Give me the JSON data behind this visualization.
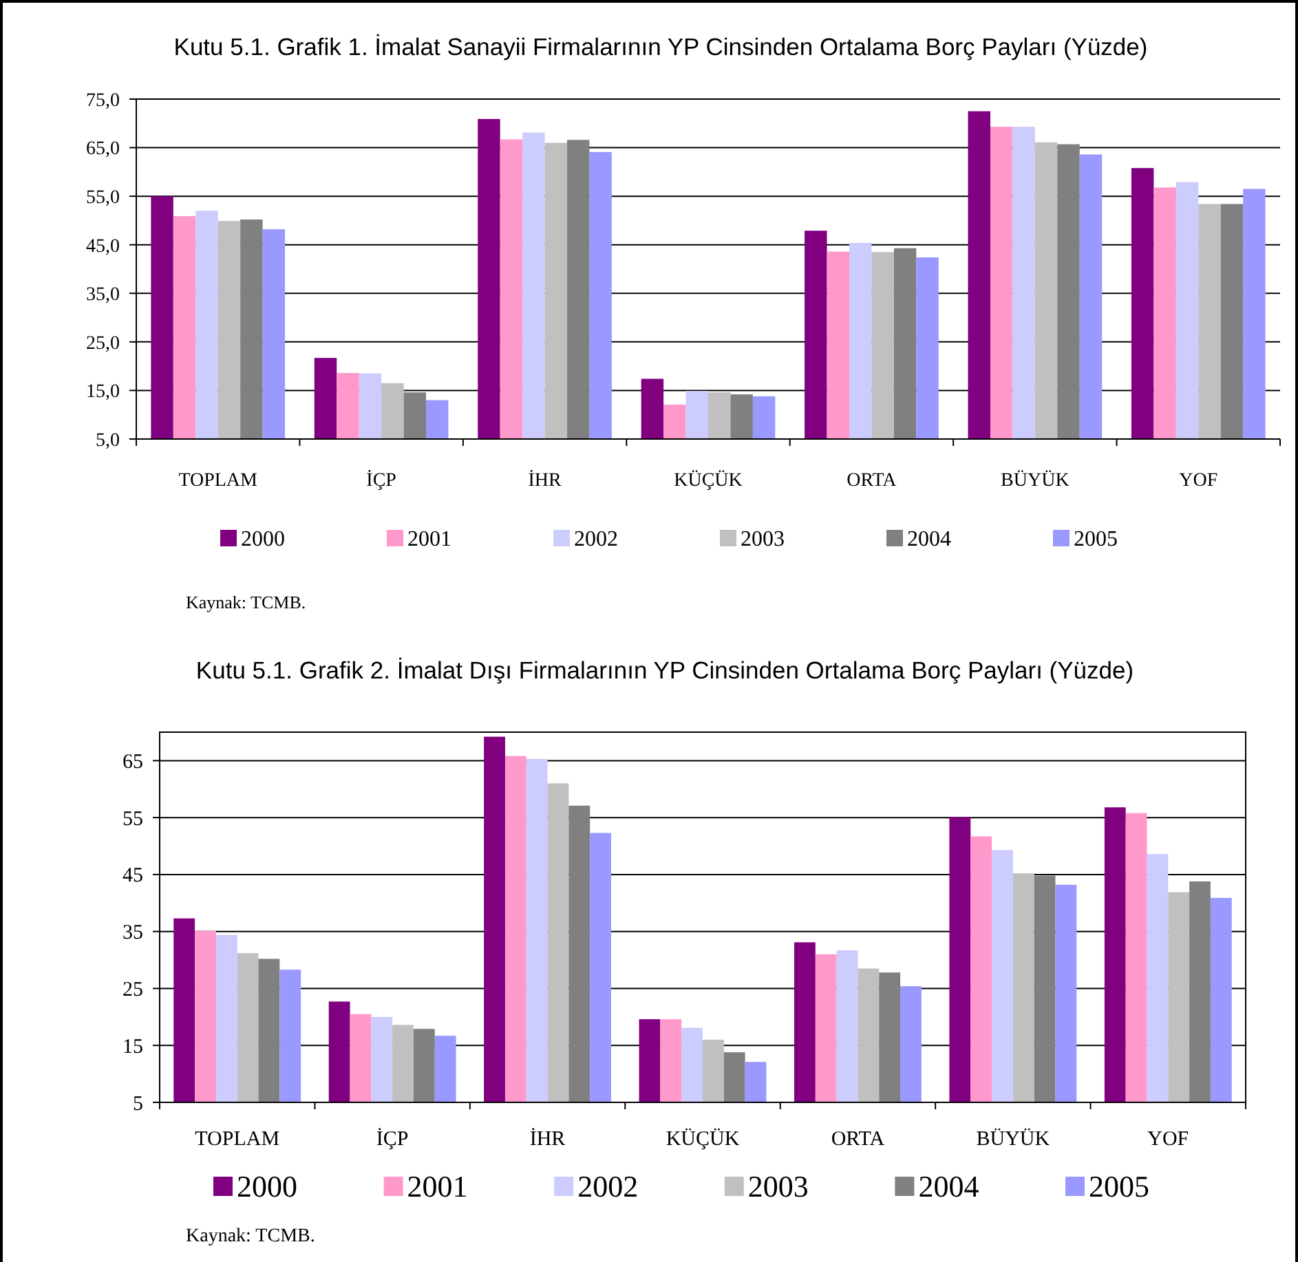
{
  "chart_data": [
    {
      "type": "bar",
      "title": "Kutu 5.1.  Grafik 1. İmalat Sanayii Firmalarının YP Cinsinden Ortalama Borç Payları (Yüzde)",
      "categories": [
        "TOPLAM",
        "İÇP",
        "İHR",
        "KÜÇÜK",
        "ORTA",
        "BÜYÜK",
        "YOF"
      ],
      "series": [
        {
          "name": "2000",
          "color": "#800080",
          "values": [
            55.0,
            21.7,
            70.9,
            17.4,
            47.9,
            72.5,
            60.8
          ]
        },
        {
          "name": "2001",
          "color": "#ff99cc",
          "values": [
            50.9,
            18.6,
            66.7,
            12.1,
            43.6,
            69.3,
            56.8
          ]
        },
        {
          "name": "2002",
          "color": "#ccccff",
          "values": [
            52.0,
            18.5,
            68.1,
            14.9,
            45.4,
            69.3,
            57.9
          ]
        },
        {
          "name": "2003",
          "color": "#c0c0c0",
          "values": [
            49.9,
            16.5,
            66.0,
            14.6,
            43.5,
            66.1,
            53.4
          ]
        },
        {
          "name": "2004",
          "color": "#808080",
          "values": [
            50.2,
            14.6,
            66.6,
            14.2,
            44.3,
            65.7,
            53.4
          ]
        },
        {
          "name": "2005",
          "color": "#9999ff",
          "values": [
            48.2,
            13.0,
            64.1,
            13.8,
            42.4,
            63.6,
            56.5
          ]
        }
      ],
      "ylim": [
        5,
        75
      ],
      "yticks": [
        {
          "value": 5,
          "label": "5,0"
        },
        {
          "value": 15,
          "label": "15,0"
        },
        {
          "value": 25,
          "label": "25,0"
        },
        {
          "value": 35,
          "label": "35,0"
        },
        {
          "value": 45,
          "label": "45,0"
        },
        {
          "value": 55,
          "label": "55,0"
        },
        {
          "value": 65,
          "label": "65,0"
        },
        {
          "value": 75,
          "label": "75,0"
        }
      ],
      "grid": "y",
      "legend": "bottom",
      "annotations": [
        "Kaynak: TCMB."
      ]
    },
    {
      "type": "bar",
      "title": "Kutu 5.1.  Grafik 2. İmalat Dışı Firmalarının YP Cinsinden Ortalama Borç Payları (Yüzde)",
      "categories": [
        "TOPLAM",
        "İÇP",
        "İHR",
        "KÜÇÜK",
        "ORTA",
        "BÜYÜK",
        "YOF"
      ],
      "series": [
        {
          "name": "2000",
          "color": "#800080",
          "values": [
            37.3,
            22.7,
            69.2,
            19.6,
            33.1,
            55.1,
            56.8
          ]
        },
        {
          "name": "2001",
          "color": "#ff99cc",
          "values": [
            35.1,
            20.5,
            65.8,
            19.6,
            31.0,
            51.7,
            55.8
          ]
        },
        {
          "name": "2002",
          "color": "#ccccff",
          "values": [
            34.4,
            20.0,
            65.3,
            18.1,
            31.7,
            49.3,
            48.6
          ]
        },
        {
          "name": "2003",
          "color": "#c0c0c0",
          "values": [
            31.2,
            18.6,
            61.0,
            16.0,
            28.5,
            45.2,
            41.9
          ]
        },
        {
          "name": "2004",
          "color": "#808080",
          "values": [
            30.2,
            17.9,
            57.1,
            13.8,
            27.8,
            44.8,
            43.8
          ]
        },
        {
          "name": "2005",
          "color": "#9999ff",
          "values": [
            28.3,
            16.7,
            52.3,
            12.1,
            25.4,
            43.2,
            40.9
          ]
        }
      ],
      "ylim": [
        5,
        70
      ],
      "yticks": [
        5,
        15,
        25,
        35,
        45,
        55,
        65
      ],
      "grid": "y",
      "legend": "bottom",
      "annotations": [
        "Kaynak: TCMB."
      ]
    }
  ]
}
